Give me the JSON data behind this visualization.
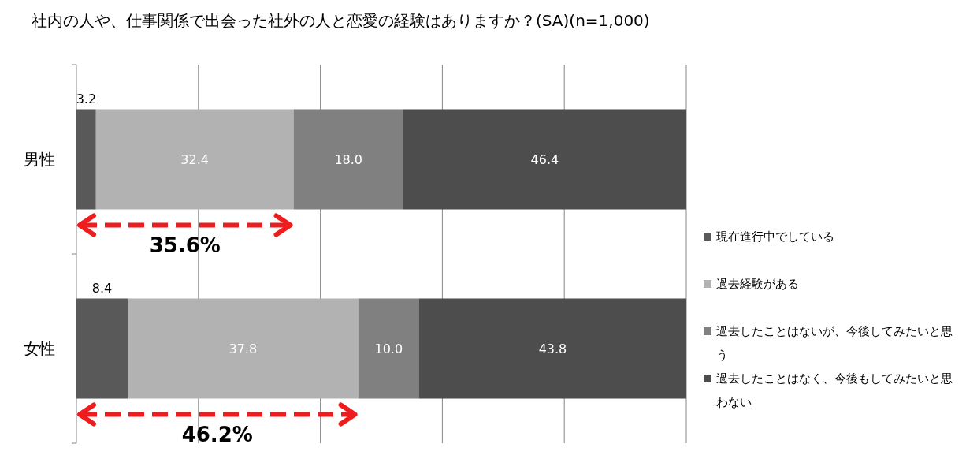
{
  "chart_data": {
    "type": "bar",
    "orientation": "horizontal",
    "stacked": true,
    "title": "社内の人や、仕事関係で出会った社外の人と恋愛の経験はありますか？(SA)(n=1,000)",
    "categories": [
      "男性",
      "女性"
    ],
    "series": [
      {
        "name": "現在進行中でしている",
        "color": "#595959",
        "values": [
          3.2,
          8.4
        ],
        "value_labels": [
          "3.2",
          "8.4"
        ]
      },
      {
        "name": "過去経験がある",
        "color": "#b2b2b2",
        "values": [
          32.4,
          37.8
        ],
        "value_labels": [
          "32.4",
          "37.8"
        ]
      },
      {
        "name": "過去したことはないが、今後してみたいと思う",
        "color": "#808080",
        "values": [
          18.0,
          10.0
        ],
        "value_labels": [
          "18.0",
          "10.0"
        ]
      },
      {
        "name": "過去したことはなく、今後もしてみたいと思わない",
        "color": "#4d4d4d",
        "values": [
          46.4,
          43.8
        ],
        "value_labels": [
          "46.4",
          "43.8"
        ]
      }
    ],
    "xlim": [
      0,
      100
    ],
    "xticks": [
      {
        "value": 0,
        "label": null
      },
      {
        "value": 20,
        "label": null
      },
      {
        "value": 40,
        "label": null
      },
      {
        "value": 60,
        "label": null
      },
      {
        "value": 80,
        "label": null
      },
      {
        "value": 100,
        "label": null
      }
    ],
    "tick_labels": "y",
    "grid": "x",
    "legend": "right",
    "annotations": [
      "35.6%",
      "46.2%"
    ]
  }
}
